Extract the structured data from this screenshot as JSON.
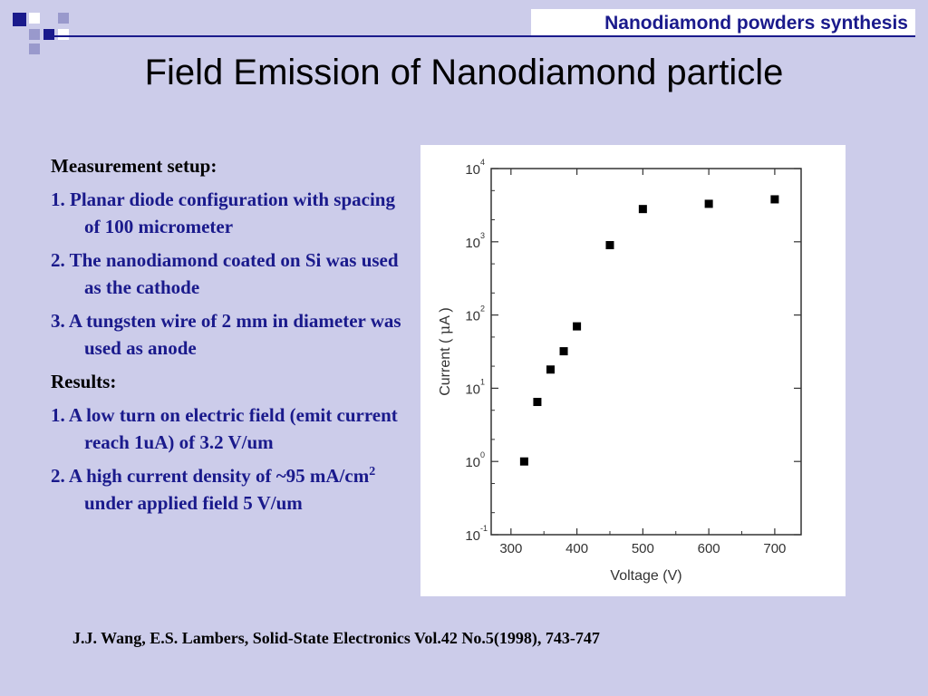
{
  "header": {
    "label": "Nanodiamond powders synthesis"
  },
  "title": "Field Emission of Nanodiamond particle",
  "content": {
    "setup_heading": "Measurement setup:",
    "setup_items": [
      "1. Planar diode configuration with spacing of 100 micrometer",
      "2. The nanodiamond coated on Si was used as the cathode",
      "3. A tungsten wire of 2 mm in diameter was used as anode"
    ],
    "results_heading": "Results:",
    "results_items": [
      "1. A low turn on electric field (emit current reach 1uA) of 3.2 V/um"
    ],
    "result2_before": "2. A high current density of ~95 mA/cm",
    "result2_sup": "2",
    "result2_after": " under applied field 5 V/um"
  },
  "citation": "J.J. Wang, E.S. Lambers, Solid-State Electronics Vol.42 No.5(1998), 743-747",
  "chart_data": {
    "type": "scatter",
    "xlabel": "Voltage (V)",
    "ylabel_main": "Current ( ",
    "ylabel_mu": "μ",
    "ylabel_unit": "A )",
    "x_ticks": [
      "300",
      "400",
      "500",
      "600",
      "700"
    ],
    "x_tick_values": [
      300,
      400,
      500,
      600,
      700
    ],
    "y_tick_base": "10",
    "y_tick_exponents": [
      "-1",
      "0",
      "1",
      "2",
      "3",
      "4"
    ],
    "y_tick_values": [
      -1,
      0,
      1,
      2,
      3,
      4
    ],
    "xlim": [
      270,
      740
    ],
    "ylim_log10": [
      -1,
      4
    ],
    "y_scale": "log",
    "points": [
      {
        "x": 320,
        "y": 1.0
      },
      {
        "x": 340,
        "y": 6.5
      },
      {
        "x": 360,
        "y": 18
      },
      {
        "x": 380,
        "y": 32
      },
      {
        "x": 400,
        "y": 70
      },
      {
        "x": 450,
        "y": 900
      },
      {
        "x": 500,
        "y": 2800
      },
      {
        "x": 600,
        "y": 3300
      },
      {
        "x": 700,
        "y": 3800
      }
    ],
    "marker_color": "#000000",
    "grid": false
  },
  "colors": {
    "background": "#ccccea",
    "accent": "#1a1a8c",
    "text": "#000000"
  }
}
